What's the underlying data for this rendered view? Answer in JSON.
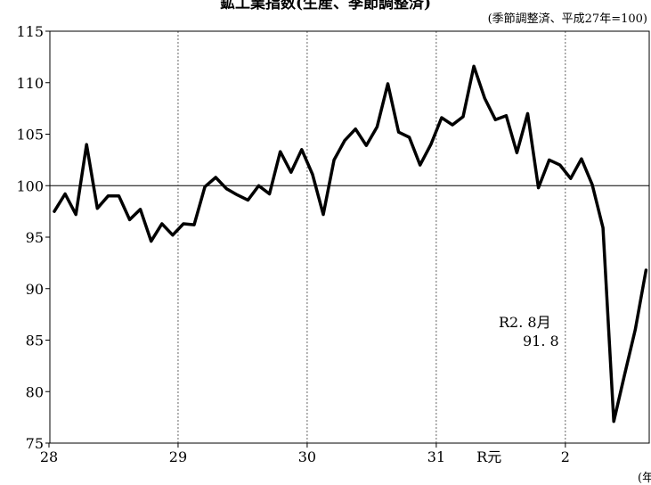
{
  "chart_data": {
    "type": "line",
    "title": "鉱工業指数(生産、季節調整済)",
    "subtitle": "(季節調整済、平成27年=100)",
    "x_unit": "(年",
    "ylim": [
      75,
      115
    ],
    "y_ticks": [
      "75",
      "80",
      "85",
      "90",
      "95",
      "100",
      "105",
      "110",
      "115"
    ],
    "x_tick_labels": [
      "28",
      "29",
      "30",
      "31",
      "2"
    ],
    "x_extra_label": "R元",
    "reference_line": 100,
    "annotation": {
      "line1": "R2. 8月",
      "line2": "91. 8"
    },
    "series": [
      {
        "values": [
          97.5,
          99.2,
          97.2,
          104.0,
          97.8,
          99.0,
          99.0,
          96.7,
          97.7,
          94.6,
          96.3,
          95.2,
          96.3,
          96.2,
          99.9,
          100.8,
          99.7,
          99.1,
          98.6,
          100.0,
          99.2,
          103.3,
          101.3,
          103.5,
          101.1,
          97.2,
          102.5,
          104.4,
          105.5,
          103.9,
          105.7,
          109.9,
          105.2,
          104.7,
          102.0,
          104.0,
          106.6,
          105.9,
          106.7,
          111.6,
          108.5,
          106.4,
          106.8,
          103.2,
          107.0,
          99.8,
          102.5,
          102.0,
          100.7,
          102.6,
          100.1,
          95.9,
          77.1,
          81.6,
          86.0,
          91.8
        ]
      }
    ]
  }
}
